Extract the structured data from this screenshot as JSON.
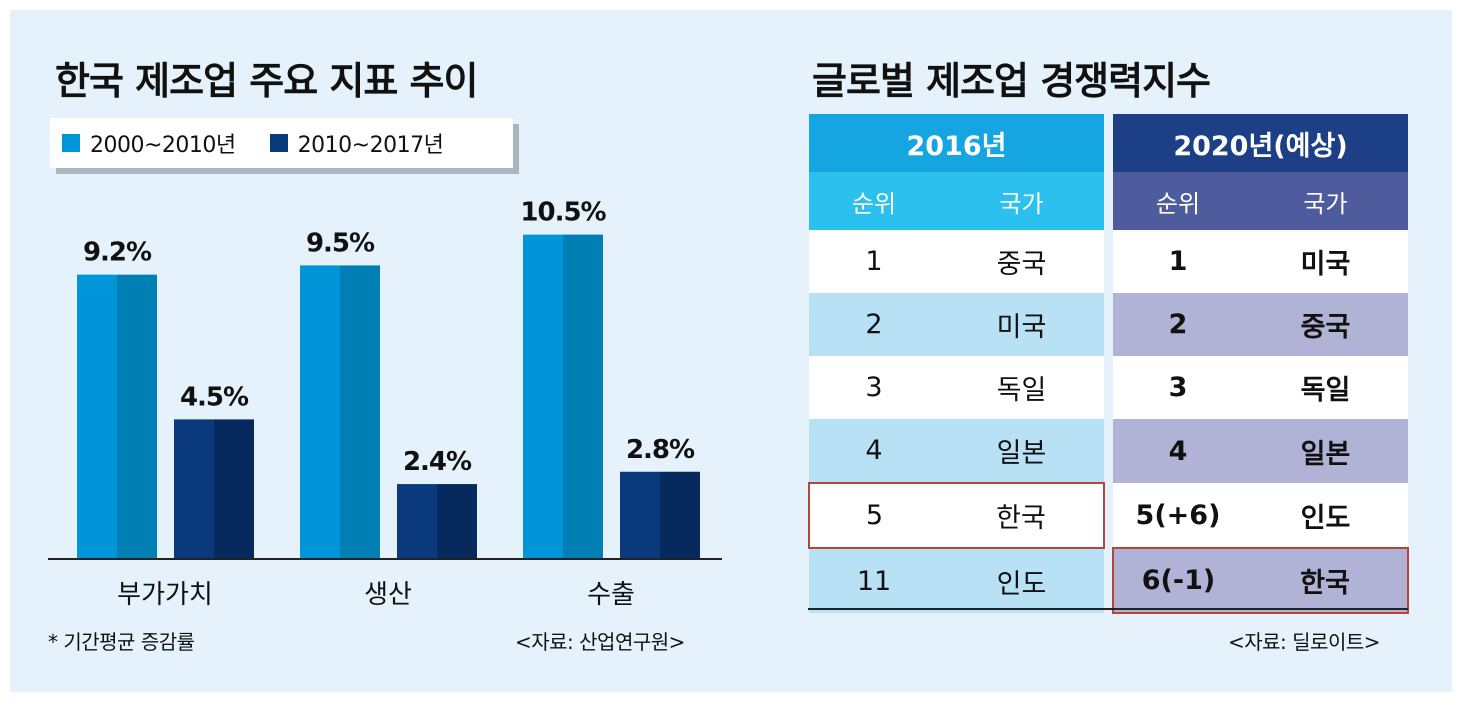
{
  "left_panel": {
    "title": "한국 제조업 주요 지표 추이",
    "footnote": "* 기간평균 증감률",
    "source": "<자료: 산업연구원>"
  },
  "right_panel": {
    "title": "글로벌 제조업 경쟁력지수",
    "source": "<자료: 딜로이트>",
    "table": {
      "group_headers": [
        "2016년",
        "2020년(예상)"
      ],
      "sub_headers": [
        "순위",
        "국가",
        "순위",
        "국가"
      ],
      "rows": [
        [
          "1",
          "중국",
          "1",
          "미국"
        ],
        [
          "2",
          "미국",
          "2",
          "중국"
        ],
        [
          "3",
          "독일",
          "3",
          "독일"
        ],
        [
          "4",
          "일본",
          "4",
          "일본"
        ],
        [
          "5",
          "한국",
          "5(+6)",
          "인도"
        ],
        [
          "11",
          "인도",
          "6(-1)",
          "한국"
        ]
      ]
    }
  },
  "colors": {
    "series_light": "#0095d8",
    "series_dark": "#0a3a7c",
    "background": "#e5f2fb",
    "table_2016_header": "#15a6e1",
    "table_2020_header": "#1d3f86",
    "table_2020_subheader": "#4e5b9c",
    "table_2016_band": "#b9e1f5",
    "table_2020_band": "#b1b3d6",
    "highlight_border": "#b8433a"
  },
  "chart_data": {
    "type": "bar",
    "title": "한국 제조업 주요 지표 추이",
    "categories": [
      "부가가치",
      "생산",
      "수출"
    ],
    "series": [
      {
        "name": "2000~2010년",
        "values": [
          9.2,
          9.5,
          10.5
        ],
        "labels": [
          "9.2%",
          "9.5%",
          "10.5%"
        ]
      },
      {
        "name": "2010~2017년",
        "values": [
          4.5,
          2.4,
          2.8
        ],
        "labels": [
          "4.5%",
          "2.4%",
          "2.8%"
        ]
      }
    ],
    "unit": "%",
    "ylim": [
      0,
      12
    ],
    "grid": false,
    "legend": "top-left"
  }
}
